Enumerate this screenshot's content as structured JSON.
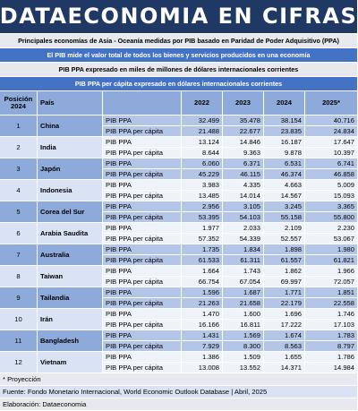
{
  "header": {
    "title": "DATAECONOMIA EN CIFRAS"
  },
  "subtitles": [
    "Principales economías de Asia - Oceanía medidas por PIB basado en Paridad de Poder Adquisitivo (PPA)",
    "El PIB mide el valor total de todos los bienes y servicios producidos en una economía",
    "PIB PPA expresado en miles de millones de dólares internacionales corrientes",
    "PIB PPA per cápita expresado en dólares internacionales corrientes"
  ],
  "table": {
    "columns": [
      "Posición 2024",
      "País",
      "2022",
      "2023",
      "2024",
      "2025*"
    ],
    "rows": [
      {
        "position": "1",
        "country": "China",
        "lines": [
          {
            "label": "PIB PPA",
            "values": [
              "32.499",
              "35.478",
              "38.154",
              "40.716"
            ]
          },
          {
            "label": "PIB PPA per cápita",
            "values": [
              "21.488",
              "22.677",
              "23.835",
              "24.834"
            ]
          }
        ]
      },
      {
        "position": "2",
        "country": "India",
        "lines": [
          {
            "label": "PIB PPA",
            "values": [
              "13.124",
              "14.846",
              "16.187",
              "17.647"
            ]
          },
          {
            "label": "PIB PPA per cápita",
            "values": [
              "8.644",
              "9.363",
              "9.878",
              "10.397"
            ]
          }
        ]
      },
      {
        "position": "3",
        "country": "Japón",
        "lines": [
          {
            "label": "PIB PPA",
            "values": [
              "6.060",
              "6.371",
              "6.531",
              "6.741"
            ]
          },
          {
            "label": "PIB PPA per cápita",
            "values": [
              "45.229",
              "46.115",
              "46.374",
              "46.858"
            ]
          }
        ]
      },
      {
        "position": "4",
        "country": "Indonesia",
        "lines": [
          {
            "label": "PIB PPA",
            "values": [
              "3.983",
              "4.335",
              "4.663",
              "5.009"
            ]
          },
          {
            "label": "PIB PPA per cápita",
            "values": [
              "13.485",
              "14.014",
              "14.567",
              "15.093"
            ]
          }
        ]
      },
      {
        "position": "5",
        "country": "Corea del Sur",
        "lines": [
          {
            "label": "PIB PPA",
            "values": [
              "2.956",
              "3.105",
              "3.245",
              "3.365"
            ]
          },
          {
            "label": "PIB PPA per cápita",
            "values": [
              "53.395",
              "54.103",
              "55.158",
              "55.800"
            ]
          }
        ]
      },
      {
        "position": "6",
        "country": "Arabia Saudita",
        "lines": [
          {
            "label": "PIB PPA",
            "values": [
              "1.977",
              "2.033",
              "2.109",
              "2.230"
            ]
          },
          {
            "label": "PIB PPA per cápita",
            "values": [
              "57.352",
              "54.339",
              "52.557",
              "53.067"
            ]
          }
        ]
      },
      {
        "position": "7",
        "country": "Australia",
        "lines": [
          {
            "label": "PIB PPA",
            "values": [
              "1.735",
              "1.834",
              "1.898",
              "1.980"
            ]
          },
          {
            "label": "PIB PPA per cápita",
            "values": [
              "61.533",
              "61.311",
              "61.557",
              "61.821"
            ]
          }
        ]
      },
      {
        "position": "8",
        "country": "Taiwan",
        "lines": [
          {
            "label": "PIB PPA",
            "values": [
              "1.664",
              "1.743",
              "1.862",
              "1.966"
            ]
          },
          {
            "label": "PIB PPA per cápita",
            "values": [
              "66.754",
              "67.054",
              "69.997",
              "72.057"
            ]
          }
        ]
      },
      {
        "position": "9",
        "country": "Tailandia",
        "lines": [
          {
            "label": "PIB PPA",
            "values": [
              "1.596",
              "1.687",
              "1.771",
              "1.851"
            ]
          },
          {
            "label": "PIB PPA per cápita",
            "values": [
              "21.263",
              "21.658",
              "22.179",
              "22.558"
            ]
          }
        ]
      },
      {
        "position": "10",
        "country": "Irán",
        "lines": [
          {
            "label": "PIB PPA",
            "values": [
              "1.470",
              "1.600",
              "1.696",
              "1.746"
            ]
          },
          {
            "label": "PIB PPA per cápita",
            "values": [
              "16.166",
              "16.811",
              "17.222",
              "17.103"
            ]
          }
        ]
      },
      {
        "position": "11",
        "country": "Bangladesh",
        "lines": [
          {
            "label": "PIB PPA",
            "values": [
              "1.431",
              "1.569",
              "1.674",
              "1.783"
            ]
          },
          {
            "label": "PIB PPA per cápita",
            "values": [
              "7.929",
              "8.300",
              "8.563",
              "8.797"
            ]
          }
        ]
      },
      {
        "position": "12",
        "country": "Vietnam",
        "lines": [
          {
            "label": "PIB PPA",
            "values": [
              "1.386",
              "1.509",
              "1.655",
              "1.786"
            ]
          },
          {
            "label": "PIB PPA per cápita",
            "values": [
              "13.008",
              "13.552",
              "14.371",
              "14.984"
            ]
          }
        ]
      }
    ]
  },
  "footer": [
    "* Proyección",
    "Fuente: Fondo Monetario Internacional, World Economic Outlook Database | Abril, 2025",
    "Elaboración: Dataeconomia"
  ]
}
